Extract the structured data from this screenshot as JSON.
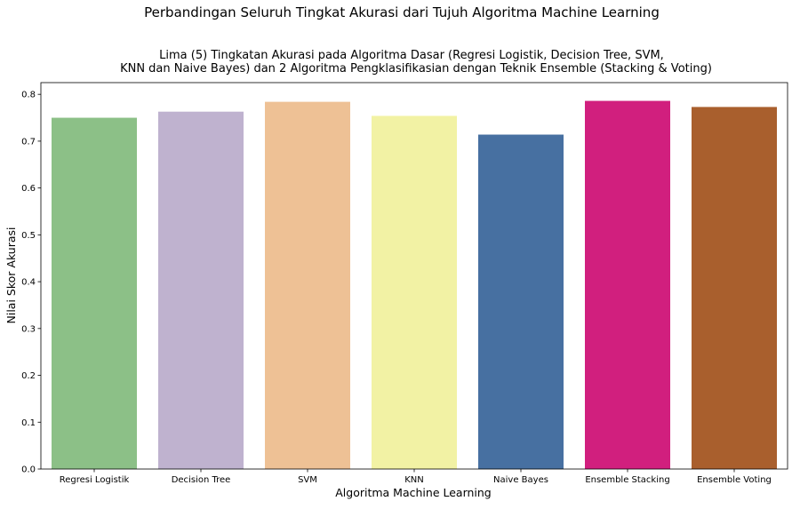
{
  "chart_data": {
    "type": "bar",
    "title": "Perbandingan Seluruh Tingkat Akurasi dari Tujuh Algoritma Machine Learning",
    "subtitle_lines": [
      "Lima (5) Tingkatan Akurasi pada Algoritma Dasar (Regresi Logistik, Decision Tree, SVM,",
      "KNN dan Naive Bayes) dan 2 Algoritma Pengklasifikasian dengan Teknik Ensemble (Stacking & Voting)"
    ],
    "xlabel": "Algoritma Machine Learning",
    "ylabel": "Nilai Skor Akurasi",
    "categories": [
      "Regresi Logistik",
      "Decision Tree",
      "SVM",
      "KNN",
      "Naive Bayes",
      "Ensemble Stacking",
      "Ensemble Voting"
    ],
    "values": [
      0.75,
      0.763,
      0.784,
      0.754,
      0.714,
      0.786,
      0.773
    ],
    "colors": [
      "#8cc087",
      "#bfb2cf",
      "#eec195",
      "#f2f2a4",
      "#4770a1",
      "#d11f7e",
      "#a95f2d"
    ],
    "yticks": [
      "0.0",
      "0.1",
      "0.2",
      "0.3",
      "0.4",
      "0.5",
      "0.6",
      "0.7",
      "0.8"
    ],
    "ylim": [
      0,
      0.825
    ],
    "grid": false,
    "legend": "none"
  }
}
